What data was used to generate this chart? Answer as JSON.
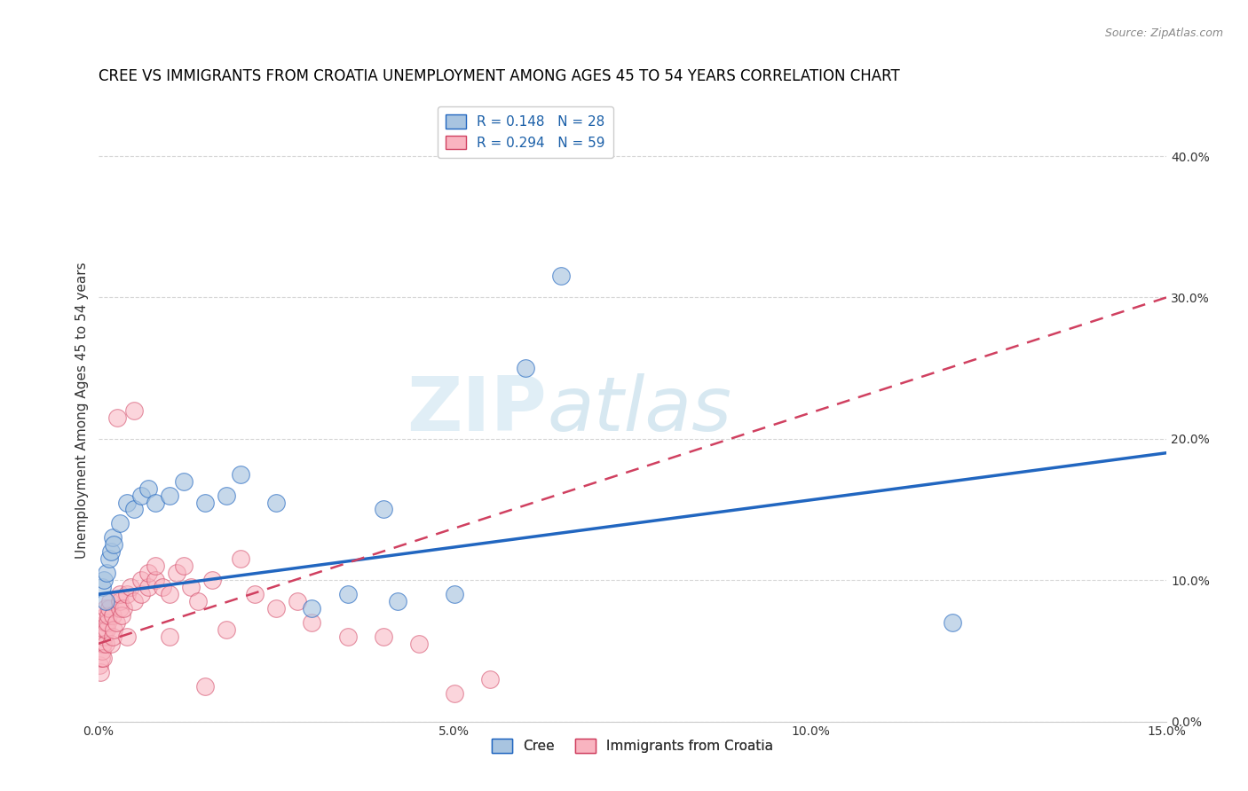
{
  "title": "CREE VS IMMIGRANTS FROM CROATIA UNEMPLOYMENT AMONG AGES 45 TO 54 YEARS CORRELATION CHART",
  "source": "Source: ZipAtlas.com",
  "ylabel": "Unemployment Among Ages 45 to 54 years",
  "xlim": [
    0.0,
    0.15
  ],
  "ylim": [
    0.0,
    0.44
  ],
  "xticks": [
    0.0,
    0.05,
    0.1,
    0.15
  ],
  "xtick_labels": [
    "0.0%",
    "5.0%",
    "10.0%",
    "15.0%"
  ],
  "yticks": [
    0.0,
    0.1,
    0.2,
    0.3,
    0.4
  ],
  "ytick_labels": [
    "0.0%",
    "10.0%",
    "20.0%",
    "30.0%",
    "40.0%"
  ],
  "cree_R": 0.148,
  "cree_N": 28,
  "croatia_R": 0.294,
  "croatia_N": 59,
  "cree_color": "#a8c4e0",
  "cree_line_color": "#2166c0",
  "croatia_color": "#f9b4c0",
  "croatia_line_color": "#d04060",
  "watermark_zip": "ZIP",
  "watermark_atlas": "atlas",
  "legend_label_cree": "Cree",
  "legend_label_croatia": "Immigrants from Croatia",
  "cree_scatter_x": [
    0.0005,
    0.0008,
    0.001,
    0.0012,
    0.0015,
    0.0018,
    0.002,
    0.0022,
    0.003,
    0.004,
    0.005,
    0.006,
    0.007,
    0.008,
    0.01,
    0.012,
    0.015,
    0.018,
    0.02,
    0.025,
    0.03,
    0.035,
    0.04,
    0.042,
    0.05,
    0.06,
    0.065,
    0.12
  ],
  "cree_scatter_y": [
    0.095,
    0.1,
    0.085,
    0.105,
    0.115,
    0.12,
    0.13,
    0.125,
    0.14,
    0.155,
    0.15,
    0.16,
    0.165,
    0.155,
    0.16,
    0.17,
    0.155,
    0.16,
    0.175,
    0.155,
    0.08,
    0.09,
    0.15,
    0.085,
    0.09,
    0.25,
    0.315,
    0.07
  ],
  "croatia_scatter_x": [
    0.0002,
    0.0003,
    0.0004,
    0.0005,
    0.0006,
    0.0007,
    0.0008,
    0.0009,
    0.001,
    0.001,
    0.001,
    0.001,
    0.0012,
    0.0013,
    0.0014,
    0.0015,
    0.0016,
    0.0018,
    0.002,
    0.002,
    0.0022,
    0.0025,
    0.0027,
    0.003,
    0.003,
    0.003,
    0.0033,
    0.0035,
    0.004,
    0.004,
    0.0045,
    0.005,
    0.005,
    0.006,
    0.006,
    0.007,
    0.007,
    0.008,
    0.008,
    0.009,
    0.01,
    0.01,
    0.011,
    0.012,
    0.013,
    0.014,
    0.015,
    0.016,
    0.018,
    0.02,
    0.022,
    0.025,
    0.028,
    0.03,
    0.035,
    0.04,
    0.045,
    0.05,
    0.055
  ],
  "croatia_scatter_y": [
    0.04,
    0.035,
    0.045,
    0.05,
    0.055,
    0.045,
    0.06,
    0.065,
    0.055,
    0.07,
    0.075,
    0.08,
    0.065,
    0.07,
    0.075,
    0.08,
    0.085,
    0.055,
    0.06,
    0.075,
    0.065,
    0.07,
    0.215,
    0.08,
    0.085,
    0.09,
    0.075,
    0.08,
    0.06,
    0.09,
    0.095,
    0.085,
    0.22,
    0.09,
    0.1,
    0.095,
    0.105,
    0.1,
    0.11,
    0.095,
    0.06,
    0.09,
    0.105,
    0.11,
    0.095,
    0.085,
    0.025,
    0.1,
    0.065,
    0.115,
    0.09,
    0.08,
    0.085,
    0.07,
    0.06,
    0.06,
    0.055,
    0.02,
    0.03
  ],
  "cree_line_x0": 0.0,
  "cree_line_y0": 0.09,
  "cree_line_x1": 0.15,
  "cree_line_y1": 0.19,
  "croatia_line_x0": 0.0,
  "croatia_line_y0": 0.055,
  "croatia_line_x1": 0.15,
  "croatia_line_y1": 0.3,
  "background_color": "#ffffff",
  "grid_color": "#cccccc",
  "title_fontsize": 12,
  "axis_label_fontsize": 11,
  "tick_fontsize": 10
}
